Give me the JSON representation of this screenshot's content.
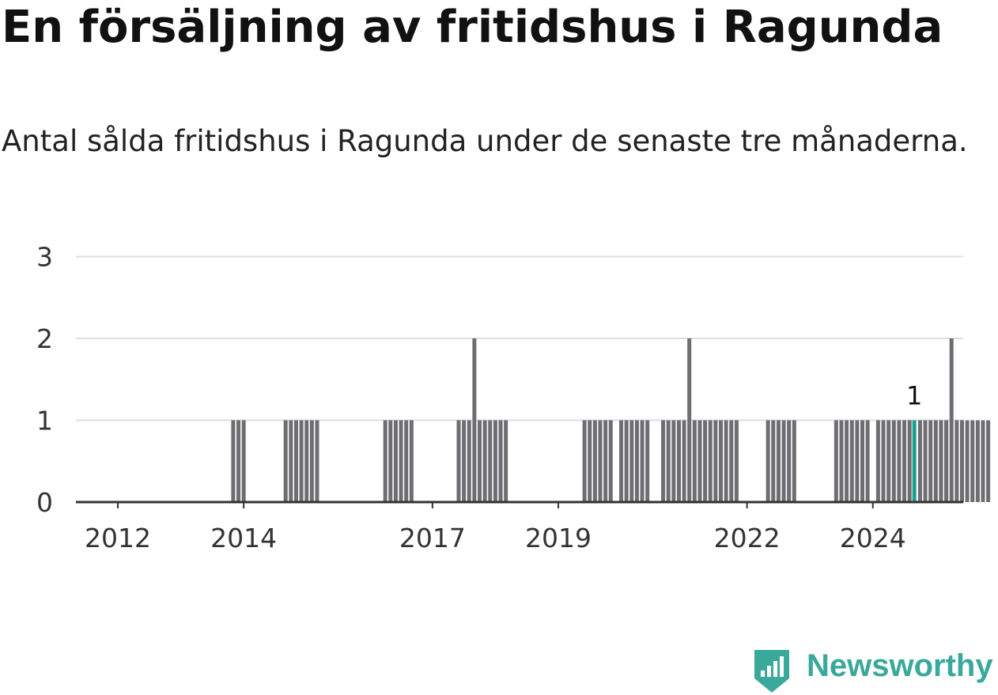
{
  "title": "En försäljning av fritidshus i Ragunda",
  "subtitle": "Antal sålda fritidshus i Ragunda under de senaste tre månaderna.",
  "brand": {
    "name": "Newsworthy"
  },
  "colors": {
    "bar": "#6e6e72",
    "highlight": "#1a9e8f",
    "grid": "#dedede",
    "axis": "#333333",
    "brand": "#3aa89a"
  },
  "chart_data": {
    "type": "bar",
    "title": "En försäljning av fritidshus i Ragunda",
    "subtitle": "Antal sålda fritidshus i Ragunda under de senaste tre månaderna.",
    "ylim": [
      0,
      3
    ],
    "yticks": [
      "0",
      "1",
      "2",
      "3"
    ],
    "xticks": [
      "2012",
      "2014",
      "2017",
      "2019",
      "2022",
      "2024"
    ],
    "grid": true,
    "highlight": {
      "x": "2024-08",
      "value": 1,
      "label": "1"
    },
    "series": [
      {
        "x": [
          "2013-11",
          "2013-12",
          "2014-01",
          "2014-09",
          "2014-10",
          "2014-11",
          "2014-12",
          "2015-01",
          "2015-02",
          "2015-03",
          "2016-04",
          "2016-05",
          "2016-06",
          "2016-07",
          "2016-08",
          "2016-09",
          "2017-06",
          "2017-07",
          "2017-08",
          "2017-09",
          "2017-10",
          "2017-11",
          "2017-12",
          "2018-01",
          "2018-02",
          "2018-03",
          "2019-06",
          "2019-07",
          "2019-08",
          "2019-09",
          "2019-10",
          "2019-11",
          "2020-01",
          "2020-02",
          "2020-03",
          "2020-04",
          "2020-05",
          "2020-06",
          "2020-09",
          "2020-10",
          "2020-11",
          "2020-12",
          "2021-01",
          "2021-02",
          "2021-03",
          "2021-04",
          "2021-05",
          "2021-06",
          "2021-07",
          "2021-08",
          "2021-09",
          "2021-10",
          "2021-11",
          "2022-05",
          "2022-06",
          "2022-07",
          "2022-08",
          "2022-09",
          "2022-10",
          "2023-06",
          "2023-07",
          "2023-08",
          "2023-09",
          "2023-10",
          "2023-11",
          "2023-12",
          "2024-02",
          "2024-03",
          "2024-04",
          "2024-05",
          "2024-06",
          "2024-07",
          "2024-08",
          "2024-10",
          "2024-11",
          "2024-12",
          "2025-01",
          "2025-02",
          "2025-03",
          "2025-06",
          "2025-07",
          "2025-08",
          "2025-09",
          "2025-10",
          "2025-11",
          "2025-02",
          "2025-03",
          "2025-04",
          "2025-05",
          "2025-06"
        ],
        "values": [
          1,
          1,
          1,
          1,
          1,
          1,
          1,
          1,
          1,
          1,
          1,
          1,
          1,
          1,
          1,
          1,
          1,
          1,
          1,
          2,
          1,
          1,
          1,
          1,
          1,
          1,
          1,
          1,
          1,
          1,
          1,
          1,
          1,
          1,
          1,
          1,
          1,
          1,
          1,
          1,
          1,
          1,
          1,
          2,
          1,
          1,
          1,
          1,
          1,
          1,
          1,
          1,
          1,
          1,
          1,
          1,
          1,
          1,
          1,
          1,
          1,
          1,
          1,
          1,
          1,
          1,
          1,
          1,
          1,
          1,
          1,
          1,
          1,
          1,
          1,
          1,
          1,
          1,
          1,
          1,
          1,
          1,
          1,
          1,
          1,
          1,
          1,
          2,
          1,
          1
        ]
      }
    ]
  }
}
